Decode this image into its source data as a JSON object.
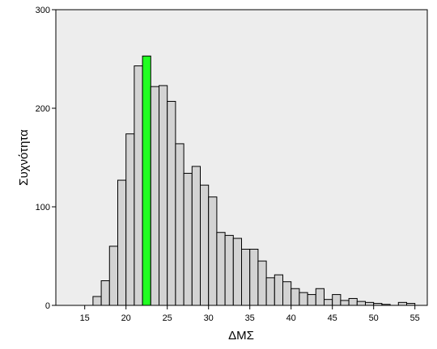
{
  "chart_data": {
    "type": "bar",
    "subtype": "histogram",
    "xlabel": "ΔΜΣ",
    "ylabel": "Συχνότητα",
    "xlim": [
      11.5,
      56.5
    ],
    "ylim": [
      0,
      300
    ],
    "x_ticks": [
      15,
      20,
      25,
      30,
      35,
      40,
      45,
      50,
      55
    ],
    "y_ticks": [
      0,
      100,
      200,
      300
    ],
    "bin_width": 1,
    "bins": [
      {
        "x": 16.5,
        "value": 9
      },
      {
        "x": 17.5,
        "value": 25
      },
      {
        "x": 18.5,
        "value": 60
      },
      {
        "x": 19.5,
        "value": 127
      },
      {
        "x": 20.5,
        "value": 174
      },
      {
        "x": 21.5,
        "value": 243
      },
      {
        "x": 22.5,
        "value": 253,
        "highlight": true
      },
      {
        "x": 23.5,
        "value": 222
      },
      {
        "x": 24.5,
        "value": 223
      },
      {
        "x": 25.5,
        "value": 207
      },
      {
        "x": 26.5,
        "value": 164
      },
      {
        "x": 27.5,
        "value": 134
      },
      {
        "x": 28.5,
        "value": 141
      },
      {
        "x": 29.5,
        "value": 122
      },
      {
        "x": 30.5,
        "value": 110
      },
      {
        "x": 31.5,
        "value": 74
      },
      {
        "x": 32.5,
        "value": 71
      },
      {
        "x": 33.5,
        "value": 68
      },
      {
        "x": 34.5,
        "value": 57
      },
      {
        "x": 35.5,
        "value": 57
      },
      {
        "x": 36.5,
        "value": 45
      },
      {
        "x": 37.5,
        "value": 28
      },
      {
        "x": 38.5,
        "value": 31
      },
      {
        "x": 39.5,
        "value": 24
      },
      {
        "x": 40.5,
        "value": 17
      },
      {
        "x": 41.5,
        "value": 13
      },
      {
        "x": 42.5,
        "value": 11
      },
      {
        "x": 43.5,
        "value": 17
      },
      {
        "x": 44.5,
        "value": 6
      },
      {
        "x": 45.5,
        "value": 11
      },
      {
        "x": 46.5,
        "value": 5
      },
      {
        "x": 47.5,
        "value": 7
      },
      {
        "x": 48.5,
        "value": 4
      },
      {
        "x": 49.5,
        "value": 3
      },
      {
        "x": 50.5,
        "value": 2
      },
      {
        "x": 51.5,
        "value": 1
      },
      {
        "x": 53.5,
        "value": 3
      },
      {
        "x": 54.5,
        "value": 2
      }
    ],
    "grid": false,
    "colors": {
      "plot_background": "#EDEDED",
      "bar_fill": "#D3D3D3",
      "highlight_fill": "#22FF22",
      "bar_stroke": "#000000"
    }
  }
}
